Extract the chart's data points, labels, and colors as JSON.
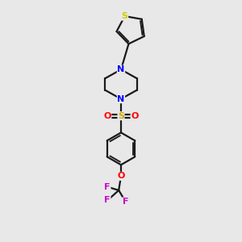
{
  "bg_color": "#e8e8e8",
  "bond_color": "#1a1a1a",
  "N_color": "#0000ff",
  "S_thiophene_color": "#cccc00",
  "S_sulfonyl_color": "#ccaa00",
  "O_color": "#ff0000",
  "F_color": "#cc00cc",
  "bond_width": 1.6,
  "figsize": [
    3.0,
    3.0
  ],
  "dpi": 100,
  "xlim": [
    -1.3,
    1.3
  ],
  "ylim": [
    -2.2,
    2.0
  ]
}
